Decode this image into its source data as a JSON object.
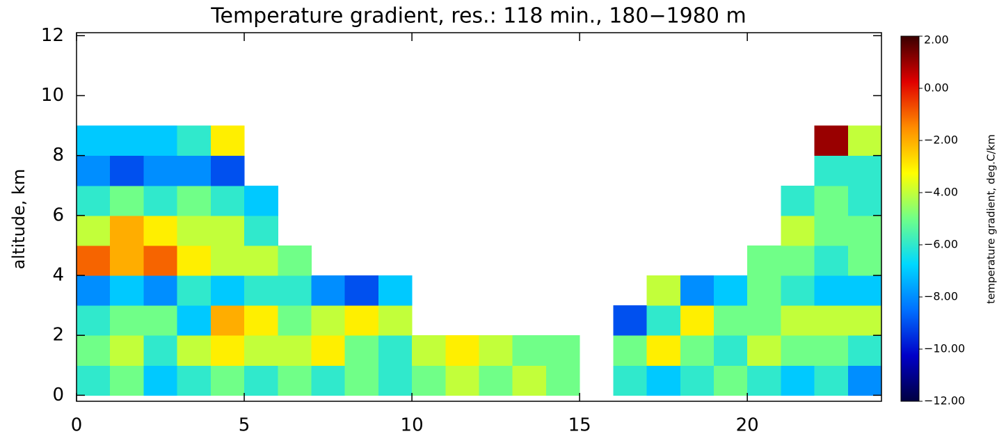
{
  "chart_data": {
    "type": "heatmap",
    "title": "Temperature gradient, res.: 118 min., 180−1980 m",
    "y_label": "altitude, km",
    "colorbar_label": "temperature gradient, deg.C/km",
    "x_edges": [
      0,
      1,
      2,
      3,
      4,
      5,
      6,
      7,
      8,
      9,
      10,
      11,
      12,
      13,
      14,
      15,
      16,
      17,
      18,
      19,
      20,
      21,
      22,
      23,
      24
    ],
    "y_edges": [
      0,
      1,
      2,
      3,
      4,
      5,
      6,
      7,
      8,
      9
    ],
    "z": [
      [
        -6,
        -5,
        -7,
        -6,
        -5,
        -6,
        -5,
        -6,
        -5,
        -6,
        -5,
        -4,
        -5,
        -4,
        -5,
        null,
        -6,
        -7,
        -6,
        -5,
        -6,
        -7,
        -6,
        -8
      ],
      [
        -5,
        -4,
        -6,
        -4,
        -3,
        -4,
        -4,
        -3,
        -5,
        -6,
        -4,
        -3,
        -4,
        -5,
        -5,
        null,
        -5,
        -3,
        -5,
        -6,
        -4,
        -5,
        -5,
        -6
      ],
      [
        -6,
        -5,
        -5,
        -7,
        -2,
        -3,
        -5,
        -4,
        -3,
        -4,
        null,
        null,
        null,
        null,
        null,
        null,
        -9,
        -6,
        -3,
        -5,
        -5,
        -4,
        -4,
        -4
      ],
      [
        -8,
        -7,
        -8,
        -6,
        -7,
        -6,
        -6,
        -8,
        -9,
        -7,
        null,
        null,
        null,
        null,
        null,
        null,
        null,
        -4,
        -8,
        -7,
        -5,
        -6,
        -7,
        -7
      ],
      [
        -1,
        -2,
        -1,
        -3,
        -4,
        -4,
        -5,
        null,
        null,
        null,
        null,
        null,
        null,
        null,
        null,
        null,
        null,
        null,
        null,
        null,
        -5,
        -5,
        -6,
        -5
      ],
      [
        -4,
        -2,
        -3,
        -4,
        -4,
        -6,
        null,
        null,
        null,
        null,
        null,
        null,
        null,
        null,
        null,
        null,
        null,
        null,
        null,
        null,
        null,
        -4,
        -5,
        -5
      ],
      [
        -6,
        -5,
        -6,
        -5,
        -6,
        -7,
        null,
        null,
        null,
        null,
        null,
        null,
        null,
        null,
        null,
        null,
        null,
        null,
        null,
        null,
        null,
        -6,
        -5,
        -6
      ],
      [
        -8,
        -9,
        -8,
        -8,
        -9,
        null,
        null,
        null,
        null,
        null,
        null,
        null,
        null,
        null,
        null,
        null,
        null,
        null,
        null,
        null,
        null,
        null,
        -6,
        -6
      ],
      [
        -7,
        -7,
        -7,
        -6,
        -3,
        null,
        null,
        null,
        null,
        null,
        null,
        null,
        null,
        null,
        null,
        null,
        null,
        null,
        null,
        null,
        null,
        null,
        1,
        -4
      ]
    ],
    "xlim": [
      0,
      24
    ],
    "ylim": [
      -0.2,
      12.1
    ],
    "xticks": [
      0,
      5,
      10,
      15,
      20
    ],
    "yticks": [
      0,
      2,
      4,
      6,
      8,
      10,
      12
    ],
    "clim": [
      -12,
      2
    ],
    "colormap": [
      "#000040",
      "#0000c8",
      "#0070ff",
      "#00d8ff",
      "#70ff88",
      "#ffff00",
      "#ff8c00",
      "#e00000",
      "#3a0000"
    ],
    "colorbar_ticks": [
      {
        "value": 2,
        "label": "2.00"
      },
      {
        "value": 0,
        "label": "0.00"
      },
      {
        "value": -2,
        "label": "−2.00"
      },
      {
        "value": -4,
        "label": "−4.00"
      },
      {
        "value": -6,
        "label": "−6.00"
      },
      {
        "value": -8,
        "label": "−8.00"
      },
      {
        "value": -10,
        "label": "−10.00"
      },
      {
        "value": -12,
        "label": "−12.00"
      }
    ]
  }
}
